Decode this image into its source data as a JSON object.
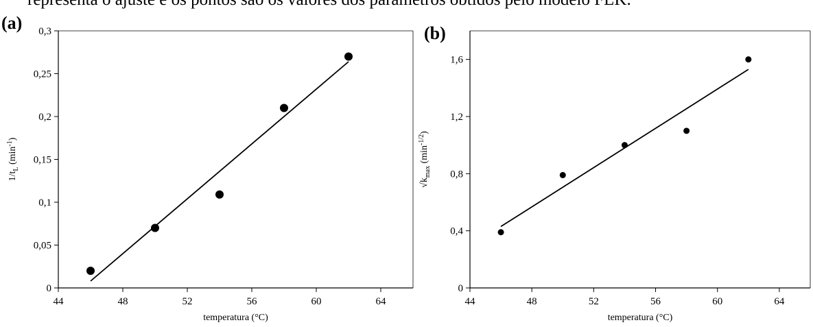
{
  "caption_fragment": "representa o ajuste e os pontos são os valores dos parâmetros obtidos pelo modelo FLK.",
  "chart_data": [
    {
      "panel_label": "(a)",
      "type": "scatter",
      "xlabel": "temperatura (°C)",
      "ylabel_main": "1/t",
      "ylabel_sub": "L",
      "ylabel_unit": " (min",
      "ylabel_sup": "-1",
      "ylabel_end": ")",
      "xlim": [
        44,
        66
      ],
      "ylim": [
        0,
        0.3
      ],
      "xticks": [
        44,
        48,
        52,
        56,
        60,
        64
      ],
      "xtick_labels": [
        "44",
        "48",
        "52",
        "56",
        "60",
        "64"
      ],
      "yticks": [
        0,
        0.05,
        0.1,
        0.15,
        0.2,
        0.25,
        0.3
      ],
      "ytick_labels": [
        "0",
        "0,05",
        "0,1",
        "0,15",
        "0,2",
        "0,25",
        "0,3"
      ],
      "x": [
        46,
        50,
        54,
        58,
        62
      ],
      "y": [
        0.02,
        0.07,
        0.109,
        0.21,
        0.27
      ],
      "fit_line": {
        "x": [
          46,
          62
        ],
        "y": [
          0.008,
          0.264
        ]
      },
      "grid": false
    },
    {
      "panel_label": "(b)",
      "type": "scatter",
      "xlabel": "temperatura (°C)",
      "ylabel_main": "√k",
      "ylabel_sub": "max",
      "ylabel_unit": " (min",
      "ylabel_sup": "-1/2",
      "ylabel_end": ")",
      "xlim": [
        44,
        66
      ],
      "ylim": [
        0,
        1.8
      ],
      "xticks": [
        44,
        48,
        52,
        56,
        60,
        64
      ],
      "xtick_labels": [
        "44",
        "48",
        "52",
        "56",
        "60",
        "64"
      ],
      "yticks": [
        0,
        0.4,
        0.8,
        1.2,
        1.6
      ],
      "ytick_labels": [
        "0",
        "0,4",
        "0,8",
        "1,2",
        "1,6"
      ],
      "x": [
        46,
        50,
        54,
        58,
        62
      ],
      "y": [
        0.39,
        0.79,
        1.0,
        1.1,
        1.6
      ],
      "fit_line": {
        "x": [
          46,
          62
        ],
        "y": [
          0.43,
          1.53
        ]
      },
      "grid": false
    }
  ]
}
